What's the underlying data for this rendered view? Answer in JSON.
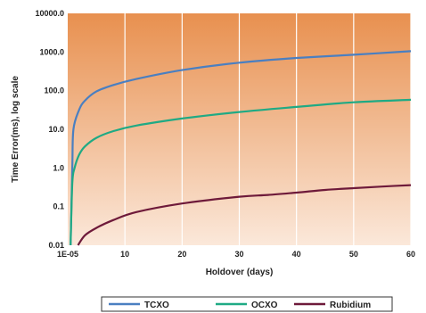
{
  "chart_data": {
    "type": "line",
    "xlabel": "Holdover (days)",
    "ylabel": "Time Error(ms), log scale",
    "y_scale": "log",
    "ylim": [
      0.01,
      10000
    ],
    "xlim": [
      0,
      60
    ],
    "x_tick_labels": [
      "1E-05",
      "10",
      "20",
      "30",
      "40",
      "50",
      "60"
    ],
    "x_tick_values": [
      0,
      10,
      20,
      30,
      40,
      50,
      60
    ],
    "y_tick_labels": [
      "0.01",
      "0.1",
      "1.0",
      "10.0",
      "100.0",
      "1000.0",
      "10000.0"
    ],
    "y_tick_values": [
      0.01,
      0.1,
      1,
      10,
      100,
      1000,
      10000
    ],
    "background_gradient": [
      "#e8904f",
      "#fbe8da"
    ],
    "grid": "vertical lines at x ticks",
    "legend_position": "bottom",
    "series": [
      {
        "name": "TCXO",
        "color": "#4a7fc1",
        "points": [
          [
            0.5,
            0.01
          ],
          [
            0.8,
            1
          ],
          [
            1,
            10
          ],
          [
            2,
            32
          ],
          [
            3,
            55
          ],
          [
            5,
            95
          ],
          [
            8,
            140
          ],
          [
            12,
            200
          ],
          [
            20,
            340
          ],
          [
            30,
            530
          ],
          [
            40,
            700
          ],
          [
            50,
            850
          ],
          [
            60,
            1050
          ]
        ]
      },
      {
        "name": "OCXO",
        "color": "#1faa84",
        "points": [
          [
            0.5,
            0.01
          ],
          [
            0.8,
            0.4
          ],
          [
            1.2,
            1
          ],
          [
            2,
            2.2
          ],
          [
            3,
            3.6
          ],
          [
            5,
            6
          ],
          [
            8,
            9
          ],
          [
            12,
            12.5
          ],
          [
            20,
            19
          ],
          [
            30,
            28
          ],
          [
            40,
            38
          ],
          [
            50,
            50
          ],
          [
            60,
            58
          ]
        ]
      },
      {
        "name": "Rubidium",
        "color": "#6e1a3a",
        "points": [
          [
            1.8,
            0.01
          ],
          [
            3,
            0.018
          ],
          [
            5,
            0.028
          ],
          [
            8,
            0.045
          ],
          [
            12,
            0.072
          ],
          [
            20,
            0.12
          ],
          [
            30,
            0.18
          ],
          [
            35,
            0.2
          ],
          [
            40,
            0.23
          ],
          [
            45,
            0.27
          ],
          [
            50,
            0.3
          ],
          [
            55,
            0.33
          ],
          [
            60,
            0.36
          ]
        ]
      }
    ]
  }
}
